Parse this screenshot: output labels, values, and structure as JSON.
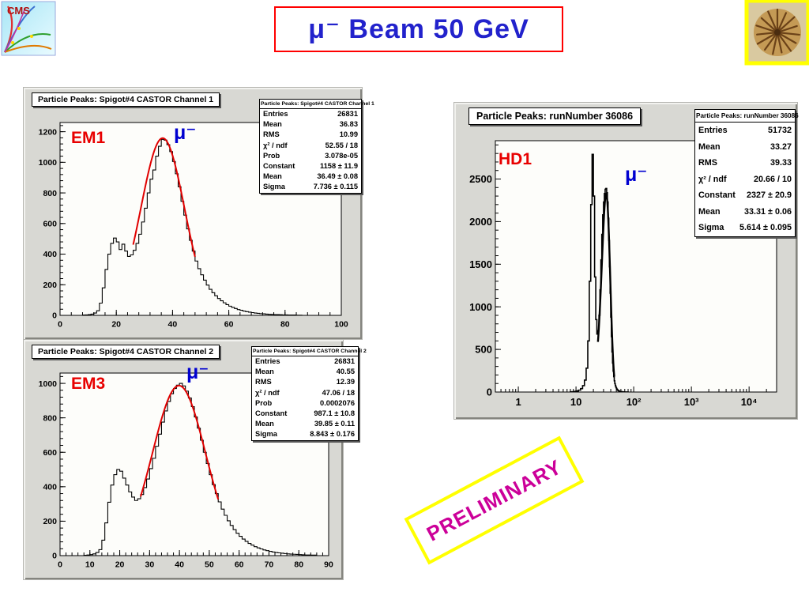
{
  "slide": {
    "title": "μ⁻ Beam 50 GeV",
    "preliminary": "PRELIMINARY",
    "cms_logo_text": "CMS"
  },
  "colors": {
    "title_text": "#2222cc",
    "title_border": "#ff0000",
    "region_label": "#e80000",
    "mu_label": "#0000d0",
    "fit_line": "#e00000",
    "preliminary_text": "#cc0099",
    "preliminary_border": "#ffff00",
    "canvas_gray": "#d8d8d3"
  },
  "chart_data": [
    {
      "type": "histogram",
      "title": "Particle Peaks: Spigot#4 CASTOR Channel 1",
      "region_label": "EM1",
      "particle_label": "μ⁻",
      "x_scale": "linear",
      "xlim": [
        0,
        100
      ],
      "xticks": [
        0,
        20,
        40,
        60,
        80,
        100
      ],
      "xtick_labels": [
        "0",
        "20",
        "40",
        "60",
        "80",
        "100"
      ],
      "ylim": [
        0,
        1260
      ],
      "yticks": [
        0,
        200,
        400,
        600,
        800,
        1000,
        1200
      ],
      "grid": false,
      "line_color": "#000000",
      "line_width": 1.1,
      "bins": {
        "start": 8,
        "width": 1,
        "counts": [
          2,
          3,
          5,
          8,
          15,
          30,
          80,
          180,
          300,
          400,
          470,
          505,
          480,
          430,
          465,
          420,
          385,
          395,
          425,
          470,
          530,
          610,
          700,
          800,
          890,
          950,
          1040,
          1105,
          1150,
          1145,
          1115,
          1070,
          1005,
          925,
          840,
          745,
          655,
          565,
          490,
          420,
          355,
          305,
          265,
          230,
          198,
          170,
          148,
          128,
          110,
          95,
          82,
          70,
          60,
          52,
          45,
          38,
          33,
          28,
          24,
          21,
          18,
          15,
          13,
          11,
          10,
          8,
          7,
          6,
          5,
          5,
          4,
          3,
          3,
          2,
          2,
          2,
          1,
          1
        ]
      },
      "fit": {
        "type": "gaussian",
        "constant": 1158,
        "mean": 36.49,
        "sigma": 7.736,
        "range": [
          26,
          48
        ],
        "color": "#e00000",
        "width": 2
      },
      "stats": {
        "title": "Particle Peaks: Spigot#4 CASTOR Channel 1",
        "rows": [
          [
            "Entries",
            "26831"
          ],
          [
            "Mean",
            "36.83"
          ],
          [
            "RMS",
            "10.99"
          ],
          [
            "χ² / ndf",
            "52.55 / 18"
          ],
          [
            "Prob",
            "3.078e-05"
          ],
          [
            "Constant",
            "1158 ± 11.9"
          ],
          [
            "Mean",
            "36.49 ± 0.08"
          ],
          [
            "Sigma",
            "7.736 ± 0.115"
          ]
        ]
      }
    },
    {
      "type": "histogram",
      "title": "Particle Peaks: Spigot#4 CASTOR Channel 2",
      "region_label": "EM3",
      "particle_label": "μ⁻",
      "x_scale": "linear",
      "xlim": [
        0,
        90
      ],
      "xticks": [
        0,
        10,
        20,
        30,
        40,
        50,
        60,
        70,
        80,
        90
      ],
      "xtick_labels": [
        "0",
        "10",
        "20",
        "30",
        "40",
        "50",
        "60",
        "70",
        "80",
        "90"
      ],
      "ylim": [
        0,
        1060
      ],
      "yticks": [
        0,
        200,
        400,
        600,
        800,
        1000
      ],
      "grid": false,
      "line_color": "#000000",
      "line_width": 1.1,
      "bins": {
        "start": 8,
        "width": 1,
        "counts": [
          2,
          4,
          6,
          10,
          18,
          35,
          90,
          190,
          310,
          410,
          470,
          500,
          490,
          450,
          410,
          370,
          340,
          320,
          330,
          355,
          395,
          445,
          505,
          565,
          635,
          705,
          775,
          840,
          895,
          940,
          970,
          990,
          1000,
          985,
          955,
          915,
          865,
          805,
          740,
          670,
          600,
          535,
          470,
          412,
          360,
          312,
          270,
          234,
          202,
          175,
          151,
          130,
          112,
          96,
          83,
          71,
          61,
          52,
          45,
          39,
          33,
          29,
          25,
          21,
          18,
          16,
          14,
          12,
          10,
          9,
          8,
          7,
          6,
          5,
          4,
          4,
          3,
          3
        ]
      },
      "fit": {
        "type": "gaussian",
        "constant": 987.1,
        "mean": 39.85,
        "sigma": 8.843,
        "range": [
          27,
          53
        ],
        "color": "#e00000",
        "width": 2
      },
      "stats": {
        "title": "Particle Peaks: Spigot#4 CASTOR Channel 2",
        "rows": [
          [
            "Entries",
            "26831"
          ],
          [
            "Mean",
            "40.55"
          ],
          [
            "RMS",
            "12.39"
          ],
          [
            "χ² / ndf",
            "47.06 / 18"
          ],
          [
            "Prob",
            "0.0002076"
          ],
          [
            "Constant",
            "987.1 ± 10.8"
          ],
          [
            "Mean",
            "39.85 ± 0.11"
          ],
          [
            "Sigma",
            "8.843 ± 0.176"
          ]
        ]
      }
    },
    {
      "type": "histogram",
      "title": "Particle Peaks: runNumber 36086",
      "region_label": "HD1",
      "particle_label": "μ⁻",
      "x_scale": "log",
      "xlim": [
        0.4,
        30000
      ],
      "xticks": [
        1,
        10,
        100,
        1000,
        10000
      ],
      "xtick_labels": [
        "1",
        "10",
        "10²",
        "10³",
        "10⁴"
      ],
      "ylim": [
        0,
        2950
      ],
      "yticks": [
        0,
        500,
        1000,
        1500,
        2000,
        2500
      ],
      "grid": false,
      "line_color": "#000000",
      "line_width": 1.6,
      "bins": {
        "start": 8,
        "width": 1,
        "counts": [
          3,
          6,
          12,
          22,
          40,
          75,
          140,
          280,
          600,
          1300,
          2200,
          2790,
          2300,
          1350,
          850,
          680,
          720,
          900,
          1200,
          1550,
          1850,
          2080,
          2230,
          2330,
          2380,
          2390,
          2340,
          2230,
          2040,
          1780,
          1470,
          1160,
          880,
          650,
          470,
          340,
          245,
          180,
          132,
          98,
          74,
          56,
          43,
          33,
          26,
          20,
          16,
          13,
          10,
          8,
          7,
          6,
          5,
          4,
          4,
          3,
          3,
          2,
          2,
          2,
          2,
          1,
          1,
          1,
          1,
          1,
          1,
          1,
          1,
          1,
          1,
          1
        ]
      },
      "fit": {
        "type": "gaussian",
        "constant": 2327,
        "mean": 33.31,
        "sigma": 5.614,
        "range": [
          24,
          46
        ],
        "color": "#000000",
        "width": 2.4
      },
      "stats": {
        "title": "Particle Peaks: runNumber 36086",
        "rows": [
          [
            "Entries",
            "51732"
          ],
          [
            "Mean",
            "33.27"
          ],
          [
            "RMS",
            "39.33"
          ],
          [
            "χ² / ndf",
            "20.66 / 10"
          ],
          [
            "Constant",
            "2327 ± 20.9"
          ],
          [
            "Mean",
            "33.31 ± 0.06"
          ],
          [
            "Sigma",
            "5.614 ± 0.095"
          ]
        ]
      }
    }
  ]
}
